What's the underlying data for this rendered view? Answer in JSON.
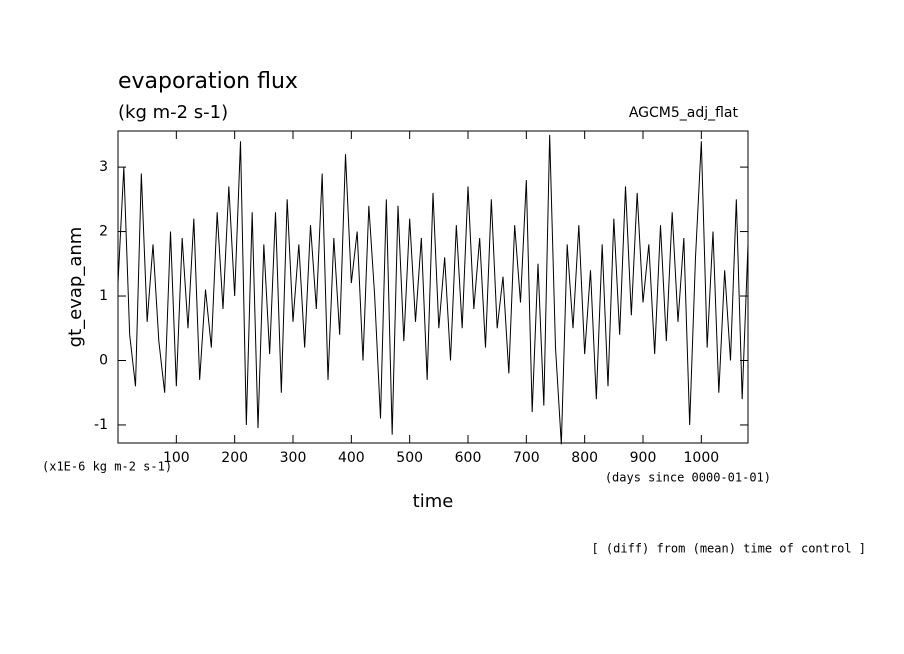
{
  "chart_data": {
    "type": "line",
    "title": "evaporation flux",
    "subtitle": "(kg m-2 s-1)",
    "annotation_right": "AGCM5_adj_flat",
    "y_label": "gt_evap_anm",
    "x_label": "time",
    "y_unit": "(x1E-6 kg m-2 s-1)",
    "x_unit": "(days since 0000-01-01)",
    "footer": "[ (diff) from (mean) time of control ]",
    "xlim": [
      0,
      1080
    ],
    "ylim": [
      -1.28,
      3.56
    ],
    "xticks": [
      100,
      200,
      300,
      400,
      500,
      600,
      700,
      800,
      900,
      1000
    ],
    "yticks": [
      -1,
      0,
      1,
      2,
      3
    ],
    "series": [
      {
        "name": "gt_evap_anm",
        "color": "#000000",
        "x": [
          0,
          10,
          20,
          30,
          40,
          50,
          60,
          70,
          80,
          90,
          100,
          110,
          120,
          130,
          140,
          150,
          160,
          170,
          180,
          190,
          200,
          210,
          220,
          230,
          240,
          250,
          260,
          270,
          280,
          290,
          300,
          310,
          320,
          330,
          340,
          350,
          360,
          370,
          380,
          390,
          400,
          410,
          420,
          430,
          440,
          450,
          460,
          470,
          480,
          490,
          500,
          510,
          520,
          530,
          540,
          550,
          560,
          570,
          580,
          590,
          600,
          610,
          620,
          630,
          640,
          650,
          660,
          670,
          680,
          690,
          700,
          710,
          720,
          730,
          740,
          750,
          760,
          770,
          780,
          790,
          800,
          810,
          820,
          830,
          840,
          850,
          860,
          870,
          880,
          890,
          900,
          910,
          920,
          930,
          940,
          950,
          960,
          970,
          980,
          990,
          1000,
          1010,
          1020,
          1030,
          1040,
          1050,
          1060,
          1070,
          1080
        ],
        "values": [
          1.2,
          3.0,
          0.4,
          -0.4,
          2.9,
          0.6,
          1.8,
          0.3,
          -0.5,
          2.0,
          -0.4,
          1.9,
          0.5,
          2.2,
          -0.3,
          1.1,
          0.2,
          2.3,
          0.8,
          2.7,
          1.0,
          3.4,
          -1.0,
          2.3,
          -1.05,
          1.8,
          0.1,
          2.3,
          -0.5,
          2.5,
          0.6,
          1.8,
          0.2,
          2.1,
          0.8,
          2.9,
          -0.3,
          1.9,
          0.4,
          3.2,
          1.2,
          2.0,
          0.0,
          2.4,
          1.0,
          -0.9,
          2.5,
          -1.15,
          2.4,
          0.3,
          2.2,
          0.6,
          1.9,
          -0.3,
          2.6,
          0.5,
          1.6,
          0.0,
          2.1,
          0.5,
          2.7,
          0.8,
          1.9,
          0.2,
          2.5,
          0.5,
          1.3,
          -0.2,
          2.1,
          0.9,
          2.8,
          -0.8,
          1.5,
          -0.7,
          3.5,
          0.2,
          -1.3,
          1.8,
          0.5,
          2.1,
          0.1,
          1.4,
          -0.6,
          1.8,
          -0.4,
          2.2,
          0.4,
          2.7,
          0.7,
          2.6,
          0.9,
          1.8,
          0.1,
          2.1,
          0.3,
          2.3,
          0.6,
          1.9,
          -1.0,
          1.6,
          3.4,
          0.2,
          2.0,
          -0.5,
          1.4,
          0.0,
          2.5,
          -0.6,
          1.8
        ]
      }
    ]
  }
}
